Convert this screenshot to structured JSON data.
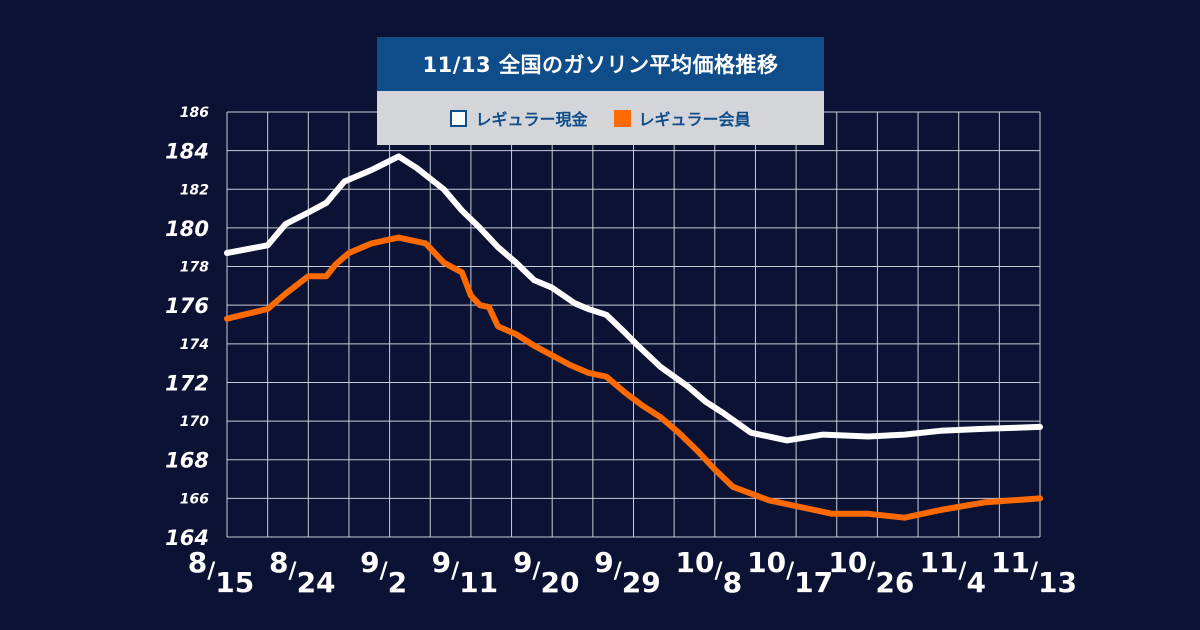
{
  "chart_data": {
    "type": "line",
    "title": "11/13 全国のガソリン平均価格推移",
    "ylim": [
      164,
      186
    ],
    "y_ticks": [
      "164",
      "166",
      "168",
      "170",
      "172",
      "174",
      "176",
      "178",
      "180",
      "182",
      "184",
      "186"
    ],
    "x_ticks": [
      {
        "month": "8",
        "day": "15"
      },
      {
        "month": "8",
        "day": "24"
      },
      {
        "month": "9",
        "day": "2"
      },
      {
        "month": "9",
        "day": "11"
      },
      {
        "month": "9",
        "day": "20"
      },
      {
        "month": "9",
        "day": "29"
      },
      {
        "month": "10",
        "day": "8"
      },
      {
        "month": "10",
        "day": "17"
      },
      {
        "month": "10",
        "day": "26"
      },
      {
        "month": "11",
        "day": "4"
      },
      {
        "month": "11",
        "day": "13"
      }
    ],
    "x_range": [
      0,
      90
    ],
    "series": [
      {
        "name": "レギュラー現金",
        "color": "#ffffff",
        "x": [
          0,
          4.5,
          6.5,
          9,
          11,
          13,
          16,
          19,
          21,
          24,
          26,
          28,
          30,
          32,
          34,
          36,
          38.5,
          40,
          42,
          44,
          45.5,
          48,
          51,
          53,
          55,
          58,
          62,
          66,
          71,
          75,
          79,
          84,
          90
        ],
        "values": [
          178.7,
          179.1,
          180.2,
          180.8,
          181.3,
          182.4,
          183.0,
          183.7,
          183.1,
          182.0,
          180.9,
          180.0,
          179.0,
          178.2,
          177.3,
          176.9,
          176.1,
          175.8,
          175.5,
          174.6,
          173.9,
          172.8,
          171.8,
          171.0,
          170.4,
          169.4,
          169.0,
          169.3,
          169.2,
          169.3,
          169.5,
          169.6,
          169.7
        ]
      },
      {
        "name": "レギュラー会員",
        "color": "#ff6a00",
        "x": [
          0,
          4.5,
          6.5,
          9,
          11,
          12,
          13.5,
          16,
          19,
          22,
          24,
          26,
          27,
          28,
          29,
          30,
          32,
          34,
          36,
          38,
          40,
          42,
          44,
          46,
          48,
          50,
          52,
          54,
          56,
          60,
          64,
          67,
          71,
          75,
          79,
          84,
          90
        ],
        "values": [
          175.3,
          175.8,
          176.6,
          177.5,
          177.5,
          178.1,
          178.7,
          179.2,
          179.5,
          179.2,
          178.2,
          177.7,
          176.5,
          176.0,
          175.9,
          174.9,
          174.5,
          173.9,
          173.4,
          172.9,
          172.5,
          172.3,
          171.5,
          170.8,
          170.2,
          169.4,
          168.5,
          167.5,
          166.6,
          165.9,
          165.5,
          165.2,
          165.2,
          165.0,
          165.4,
          165.8,
          166.0
        ]
      }
    ]
  }
}
